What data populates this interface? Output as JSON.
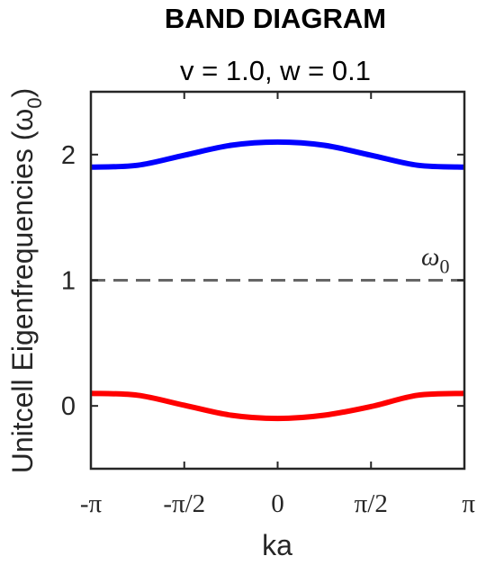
{
  "chart_data": {
    "type": "line",
    "title": "BAND DIAGRAM",
    "subtitle": "v = 1.0, w = 0.1",
    "xlabel": "ka",
    "ylabel": "Unitcell Eigenfrequencies (ω",
    "ylabel_sub": "0",
    "ylabel_close": ")",
    "xlim": [
      -3.14159265,
      3.14159265
    ],
    "ylim": [
      -0.5,
      2.5
    ],
    "xticks": [
      {
        "value": -3.14159265,
        "label": "-π"
      },
      {
        "value": -1.57079633,
        "label": "-π/2"
      },
      {
        "value": 0,
        "label": "0"
      },
      {
        "value": 1.57079633,
        "label": "π/2"
      },
      {
        "value": 3.14159265,
        "label": "π"
      }
    ],
    "yticks": [
      {
        "value": 0,
        "label": "0"
      },
      {
        "value": 1,
        "label": "1"
      },
      {
        "value": 2,
        "label": "2"
      }
    ],
    "series": [
      {
        "color": "#0000ff",
        "x": [
          -3.14159265,
          -2.35619449,
          -1.57079633,
          -0.78539816,
          0,
          0.78539816,
          1.57079633,
          2.35619449,
          3.14159265
        ],
        "y": [
          1.9,
          1.915,
          1.995,
          2.074,
          2.1,
          2.074,
          1.995,
          1.915,
          1.9
        ]
      },
      {
        "color": "#ff0000",
        "x": [
          -3.14159265,
          -2.35619449,
          -1.57079633,
          -0.78539816,
          0,
          0.78539816,
          1.57079633,
          2.35619449,
          3.14159265
        ],
        "y": [
          0.1,
          0.085,
          0.005,
          -0.074,
          -0.1,
          -0.074,
          -0.005,
          0.085,
          0.1
        ]
      }
    ],
    "reference_line": {
      "y": 1,
      "style": "dashed",
      "color": "#666666",
      "label": "ω",
      "label_sub": "0"
    },
    "grid": false,
    "legend": "none"
  }
}
